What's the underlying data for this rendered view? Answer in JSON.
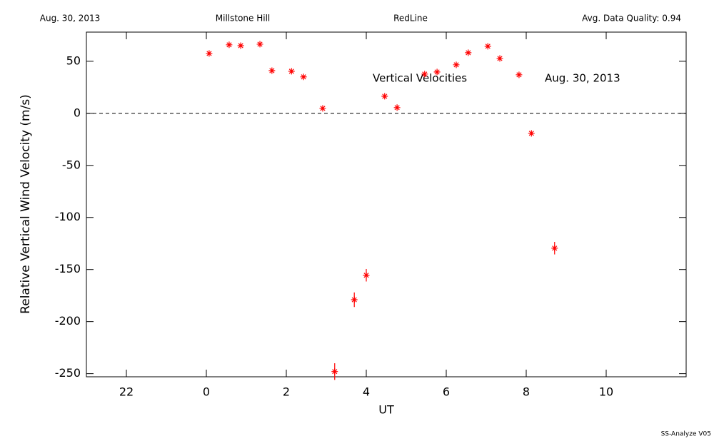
{
  "chart_data": {
    "type": "scatter",
    "header": [
      "Aug. 30, 2013",
      "Millstone Hill",
      "RedLine",
      "Avg. Data Quality: 0.94"
    ],
    "annotations": [
      "Vertical Velocities",
      "Aug. 30, 2013"
    ],
    "footer": "SS-Analyze V05",
    "xlabel": "UT",
    "ylabel": "Relative Vertical Wind Velocity (m/s)",
    "xlim": [
      -3,
      12
    ],
    "ylim": [
      -253,
      78
    ],
    "xticks": [
      {
        "value": -2,
        "label": "22"
      },
      0,
      2,
      4,
      6,
      8,
      10
    ],
    "yticks": [
      -250,
      -200,
      -150,
      -100,
      -50,
      0,
      50
    ],
    "reference_line": 0,
    "series": [
      {
        "color": "#ff0000",
        "x": [
          0.07,
          0.57,
          0.86,
          1.34,
          1.64,
          2.13,
          2.43,
          2.91,
          3.21,
          3.7,
          4.0,
          4.46,
          4.77,
          5.46,
          5.77,
          6.25,
          6.55,
          7.04,
          7.34,
          7.82,
          8.13,
          8.71
        ],
        "values": [
          57.5,
          65.8,
          65,
          66.4,
          41,
          40.4,
          35,
          4.8,
          -248,
          -179,
          -155.5,
          16.4,
          5.5,
          37.7,
          39.7,
          46.6,
          58.2,
          64.4,
          52.7,
          37,
          -19.2,
          -129.5
        ],
        "errors": [
          1.5,
          1.5,
          1.5,
          1.5,
          1.5,
          1.5,
          1.5,
          1.5,
          8,
          7,
          6,
          1.5,
          1.5,
          1.5,
          1.5,
          1.5,
          1.5,
          1.5,
          1.5,
          1.5,
          1.5,
          6
        ]
      }
    ]
  }
}
